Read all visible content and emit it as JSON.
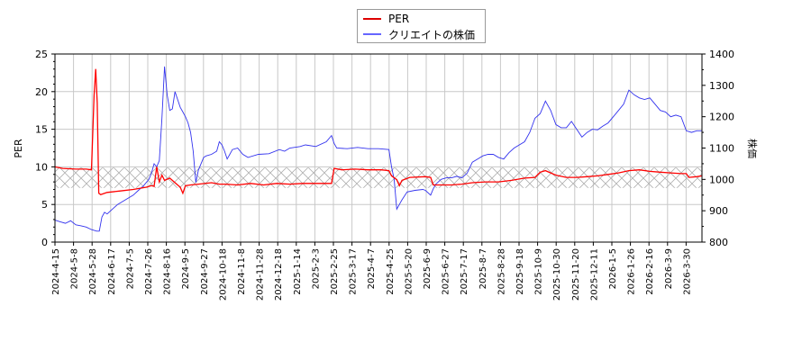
{
  "chart_data": {
    "type": "line",
    "title": "",
    "xlabel": "",
    "ylabel": "PER",
    "ylabel_right": "株価",
    "ylim": [
      0,
      25
    ],
    "ylim_right": [
      800,
      1400
    ],
    "yticks": [
      0,
      5,
      10,
      15,
      20,
      25
    ],
    "yticks_right": [
      800,
      900,
      1000,
      1100,
      1200,
      1300,
      1400
    ],
    "grid": true,
    "legend_position": "top-center",
    "band": {
      "from": 7.2,
      "to": 9.9,
      "style": "crosshatch",
      "axis": "PER"
    },
    "x_tick_labels": [
      "2024-4-15",
      "2024-5-8",
      "2024-5-28",
      "2024-6-17",
      "2024-7-5",
      "2024-7-26",
      "2024-8-16",
      "2024-9-5",
      "2024-9-27",
      "2024-10-18",
      "2024-11-8",
      "2024-11-28",
      "2024-12-18",
      "2025-1-14",
      "2025-2-3",
      "2025-2-25",
      "2025-3-17",
      "2025-4-7",
      "2025-4-25",
      "2025-5-20",
      "2025-6-9",
      "2025-6-27",
      "2025-7-17",
      "2025-8-7",
      "2025-8-28",
      "2025-9-18",
      "2025-10-9",
      "2025-10-30",
      "2025-11-20",
      "2025-12-11",
      "2026-1-5",
      "2026-1-26",
      "2026-2-16",
      "2026-3-9",
      "2026-3-30"
    ],
    "series": [
      {
        "name": "PER",
        "color": "#ff0000",
        "axis": "left",
        "points": [
          [
            0,
            10.0
          ],
          [
            3,
            9.8
          ],
          [
            8,
            9.7
          ],
          [
            12,
            9.7
          ],
          [
            14,
            9.6
          ],
          [
            15,
            19.5
          ],
          [
            15.6,
            23.0
          ],
          [
            16.2,
            18.5
          ],
          [
            16.8,
            6.5
          ],
          [
            17.5,
            6.3
          ],
          [
            20,
            6.6
          ],
          [
            25,
            6.8
          ],
          [
            30,
            7.0
          ],
          [
            35,
            7.3
          ],
          [
            37,
            7.5
          ],
          [
            38,
            7.4
          ],
          [
            39,
            10.0
          ],
          [
            40,
            8.0
          ],
          [
            41,
            8.9
          ],
          [
            42,
            8.2
          ],
          [
            44,
            8.5
          ],
          [
            46,
            7.9
          ],
          [
            48,
            7.3
          ],
          [
            49,
            6.5
          ],
          [
            50,
            7.5
          ],
          [
            52,
            7.6
          ],
          [
            55,
            7.7
          ],
          [
            60,
            7.9
          ],
          [
            63,
            7.7
          ],
          [
            65,
            7.7
          ],
          [
            70,
            7.6
          ],
          [
            75,
            7.8
          ],
          [
            80,
            7.6
          ],
          [
            85,
            7.8
          ],
          [
            90,
            7.7
          ],
          [
            95,
            7.8
          ],
          [
            100,
            7.8
          ],
          [
            106,
            7.8
          ],
          [
            107,
            9.8
          ],
          [
            110,
            9.6
          ],
          [
            115,
            9.7
          ],
          [
            120,
            9.6
          ],
          [
            125,
            9.6
          ],
          [
            128,
            9.5
          ],
          [
            129,
            8.8
          ],
          [
            131,
            8.3
          ],
          [
            132,
            7.5
          ],
          [
            133,
            8.2
          ],
          [
            136,
            8.6
          ],
          [
            142,
            8.7
          ],
          [
            144,
            8.6
          ],
          [
            145,
            7.6
          ],
          [
            148,
            7.6
          ],
          [
            152,
            7.6
          ],
          [
            156,
            7.7
          ],
          [
            160,
            7.9
          ],
          [
            165,
            8.0
          ],
          [
            170,
            8.0
          ],
          [
            175,
            8.2
          ],
          [
            180,
            8.5
          ],
          [
            184,
            8.6
          ],
          [
            186,
            9.3
          ],
          [
            188,
            9.5
          ],
          [
            190,
            9.2
          ],
          [
            192,
            8.9
          ],
          [
            196,
            8.6
          ],
          [
            200,
            8.6
          ],
          [
            204,
            8.7
          ],
          [
            208,
            8.8
          ],
          [
            212,
            9.0
          ],
          [
            216,
            9.2
          ],
          [
            220,
            9.5
          ],
          [
            224,
            9.6
          ],
          [
            228,
            9.4
          ],
          [
            232,
            9.3
          ],
          [
            236,
            9.2
          ],
          [
            240,
            9.1
          ],
          [
            242,
            9.1
          ],
          [
            243,
            8.6
          ],
          [
            246,
            8.7
          ],
          [
            248,
            8.8
          ]
        ]
      },
      {
        "name": "クリエイトの株価",
        "color": "#3333ee",
        "axis": "right",
        "points": [
          [
            0,
            870
          ],
          [
            2,
            865
          ],
          [
            4,
            860
          ],
          [
            6,
            868
          ],
          [
            8,
            855
          ],
          [
            10,
            852
          ],
          [
            12,
            848
          ],
          [
            14,
            840
          ],
          [
            16,
            835
          ],
          [
            17,
            835
          ],
          [
            18,
            880
          ],
          [
            19,
            895
          ],
          [
            20,
            890
          ],
          [
            22,
            905
          ],
          [
            24,
            920
          ],
          [
            26,
            930
          ],
          [
            28,
            940
          ],
          [
            30,
            950
          ],
          [
            32,
            965
          ],
          [
            34,
            980
          ],
          [
            36,
            1000
          ],
          [
            37,
            1020
          ],
          [
            38,
            1050
          ],
          [
            39,
            1040
          ],
          [
            40,
            1060
          ],
          [
            41,
            1195
          ],
          [
            42,
            1360
          ],
          [
            43,
            1270
          ],
          [
            44,
            1220
          ],
          [
            45,
            1225
          ],
          [
            46,
            1280
          ],
          [
            47,
            1255
          ],
          [
            48,
            1230
          ],
          [
            49,
            1215
          ],
          [
            50,
            1200
          ],
          [
            51,
            1180
          ],
          [
            52,
            1150
          ],
          [
            53,
            1090
          ],
          [
            54,
            990
          ],
          [
            55,
            1030
          ],
          [
            56,
            1050
          ],
          [
            57,
            1070
          ],
          [
            58,
            1075
          ],
          [
            60,
            1080
          ],
          [
            62,
            1090
          ],
          [
            63,
            1120
          ],
          [
            64,
            1110
          ],
          [
            65,
            1090
          ],
          [
            66,
            1065
          ],
          [
            67,
            1080
          ],
          [
            68,
            1095
          ],
          [
            70,
            1100
          ],
          [
            72,
            1080
          ],
          [
            74,
            1070
          ],
          [
            78,
            1080
          ],
          [
            82,
            1082
          ],
          [
            86,
            1095
          ],
          [
            88,
            1090
          ],
          [
            90,
            1100
          ],
          [
            94,
            1105
          ],
          [
            96,
            1110
          ],
          [
            100,
            1105
          ],
          [
            104,
            1120
          ],
          [
            106,
            1140
          ],
          [
            107,
            1115
          ],
          [
            108,
            1100
          ],
          [
            112,
            1098
          ],
          [
            116,
            1102
          ],
          [
            120,
            1098
          ],
          [
            124,
            1098
          ],
          [
            128,
            1095
          ],
          [
            129,
            1040
          ],
          [
            130,
            1000
          ],
          [
            131,
            905
          ],
          [
            132,
            920
          ],
          [
            133,
            935
          ],
          [
            135,
            960
          ],
          [
            138,
            965
          ],
          [
            141,
            968
          ],
          [
            142,
            965
          ],
          [
            144,
            950
          ],
          [
            145,
            970
          ],
          [
            146,
            985
          ],
          [
            148,
            1000
          ],
          [
            150,
            1005
          ],
          [
            152,
            1005
          ],
          [
            154,
            1010
          ],
          [
            156,
            1005
          ],
          [
            158,
            1020
          ],
          [
            160,
            1055
          ],
          [
            162,
            1065
          ],
          [
            164,
            1075
          ],
          [
            166,
            1080
          ],
          [
            168,
            1080
          ],
          [
            170,
            1070
          ],
          [
            172,
            1065
          ],
          [
            174,
            1085
          ],
          [
            176,
            1100
          ],
          [
            178,
            1110
          ],
          [
            180,
            1120
          ],
          [
            182,
            1150
          ],
          [
            184,
            1195
          ],
          [
            186,
            1210
          ],
          [
            188,
            1250
          ],
          [
            190,
            1220
          ],
          [
            192,
            1175
          ],
          [
            194,
            1165
          ],
          [
            196,
            1165
          ],
          [
            198,
            1185
          ],
          [
            200,
            1160
          ],
          [
            202,
            1135
          ],
          [
            204,
            1150
          ],
          [
            206,
            1160
          ],
          [
            208,
            1158
          ],
          [
            210,
            1170
          ],
          [
            212,
            1180
          ],
          [
            214,
            1200
          ],
          [
            216,
            1220
          ],
          [
            218,
            1240
          ],
          [
            220,
            1285
          ],
          [
            222,
            1270
          ],
          [
            224,
            1260
          ],
          [
            226,
            1255
          ],
          [
            228,
            1260
          ],
          [
            230,
            1240
          ],
          [
            232,
            1220
          ],
          [
            234,
            1215
          ],
          [
            236,
            1200
          ],
          [
            238,
            1205
          ],
          [
            240,
            1200
          ],
          [
            242,
            1155
          ],
          [
            244,
            1150
          ],
          [
            246,
            1155
          ],
          [
            248,
            1155
          ]
        ]
      }
    ]
  },
  "legend": {
    "items": [
      {
        "label": "PER",
        "color": "#dd0000"
      },
      {
        "label": "クリエイトの株価",
        "color": "#6666ff"
      }
    ]
  }
}
